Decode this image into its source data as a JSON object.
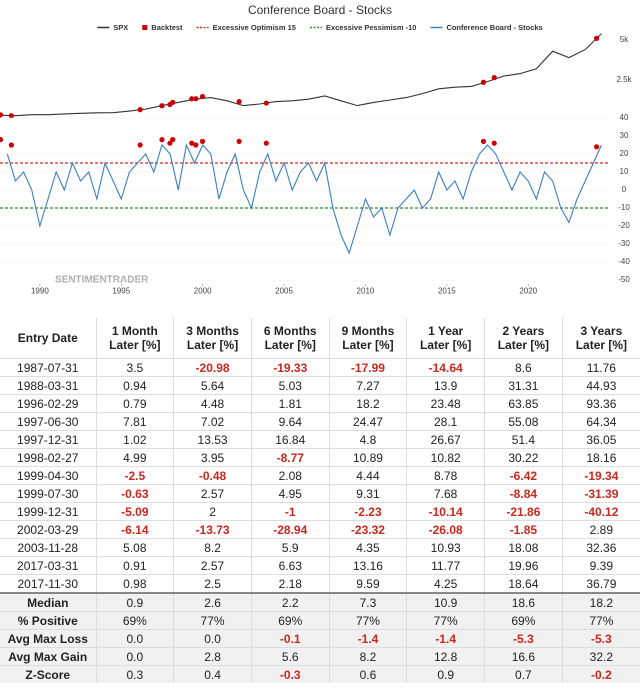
{
  "chart_data": [
    {
      "type": "line",
      "title": "Conference Board - Stocks",
      "watermark": "SENTIMENTRADER",
      "xlim": [
        1987.55,
        2024.9
      ],
      "ylim": [
        0,
        5600
      ],
      "yticks": [
        {
          "value": 2500,
          "label": "2.5k"
        },
        {
          "value": 5000,
          "label": "5k"
        }
      ],
      "series": [
        {
          "name": "SPX",
          "color": "#333333",
          "x": [
            1987.5,
            1988.5,
            1989.5,
            1990.5,
            1991.5,
            1992.5,
            1993.5,
            1994.5,
            1995.5,
            1996.5,
            1997.5,
            1998.5,
            1999.5,
            2000.5,
            2001.5,
            2002.5,
            2003.5,
            2004.5,
            2005.5,
            2006.5,
            2007.5,
            2008.5,
            2009.5,
            2010.5,
            2011.5,
            2012.5,
            2013.5,
            2014.5,
            2015.5,
            2016.5,
            2017.5,
            2018.5,
            2019.5,
            2020.5,
            2021.5,
            2022.5,
            2023.5,
            2024.5
          ],
          "values": [
            300,
            270,
            330,
            330,
            380,
            420,
            450,
            460,
            560,
            680,
            900,
            1100,
            1300,
            1400,
            1200,
            900,
            1000,
            1150,
            1200,
            1300,
            1500,
            1200,
            900,
            1100,
            1250,
            1400,
            1650,
            1950,
            2050,
            2100,
            2400,
            2750,
            2900,
            3200,
            4300,
            3900,
            4400,
            5400
          ]
        },
        {
          "name": "Backtest",
          "color": "#cc0000",
          "type": "scatter",
          "x": [
            1987.58,
            1988.25,
            1996.16,
            1997.5,
            1997.99,
            1998.16,
            1999.33,
            1999.58,
            1999.99,
            2002.24,
            2003.91,
            2017.25,
            2017.91,
            2024.2
          ],
          "values": [
            320,
            265,
            650,
            890,
            970,
            1100,
            1330,
            1330,
            1470,
            1150,
            1060,
            2360,
            2650,
            5100
          ]
        }
      ]
    },
    {
      "type": "line",
      "xlim": [
        1987.55,
        2024.9
      ],
      "ylim": [
        -52,
        42
      ],
      "grid": true,
      "yticks": [
        40,
        30,
        20,
        10,
        0,
        -10,
        -20,
        -30,
        -40,
        -50
      ],
      "xticks": [
        1990,
        1995,
        2000,
        2005,
        2010,
        2015,
        2020
      ],
      "series": [
        {
          "name": "Excessive Optimism 15",
          "color": "#dd2222",
          "dashed": true,
          "x": [
            1987.55,
            2024.9
          ],
          "values": [
            15,
            15
          ]
        },
        {
          "name": "Excessive Pessimism -10",
          "color": "#229922",
          "dashed": true,
          "x": [
            1987.55,
            2024.9
          ],
          "values": [
            -10,
            -10
          ]
        },
        {
          "name": "Conference Board - Stocks",
          "color": "#3a7fc4",
          "x": [
            1988,
            1988.5,
            1989,
            1989.5,
            1990,
            1990.5,
            1991,
            1991.5,
            1992,
            1992.5,
            1993,
            1993.5,
            1994,
            1994.5,
            1995,
            1995.5,
            1996,
            1996.5,
            1997,
            1997.5,
            1998,
            1998.5,
            1999,
            1999.5,
            2000,
            2000.5,
            2001,
            2001.5,
            2002,
            2002.5,
            2003,
            2003.5,
            2004,
            2004.5,
            2005,
            2005.5,
            2006,
            2006.5,
            2007,
            2007.5,
            2008,
            2008.5,
            2009,
            2009.5,
            2010,
            2010.5,
            2011,
            2011.5,
            2012,
            2012.5,
            2013,
            2013.5,
            2014,
            2014.5,
            2015,
            2015.5,
            2016,
            2016.5,
            2017,
            2017.5,
            2018,
            2018.5,
            2019,
            2019.5,
            2020,
            2020.5,
            2021,
            2021.5,
            2022,
            2022.5,
            2023,
            2023.5,
            2024,
            2024.5
          ],
          "values": [
            20,
            5,
            10,
            0,
            -20,
            -5,
            10,
            0,
            15,
            5,
            10,
            -5,
            15,
            5,
            -5,
            10,
            15,
            20,
            10,
            25,
            20,
            0,
            25,
            15,
            25,
            20,
            -5,
            10,
            20,
            0,
            -10,
            10,
            20,
            5,
            15,
            0,
            10,
            15,
            5,
            15,
            -10,
            -25,
            -35,
            -20,
            -5,
            -15,
            -10,
            -25,
            -10,
            -5,
            0,
            -10,
            -5,
            10,
            0,
            5,
            -5,
            10,
            20,
            25,
            20,
            10,
            0,
            10,
            5,
            -5,
            10,
            5,
            -10,
            -18,
            -5,
            5,
            15,
            25
          ]
        }
      ],
      "markers": {
        "color": "#cc0000",
        "x": [
          1987.58,
          1988.25,
          1996.16,
          1997.5,
          1997.99,
          1998.16,
          1999.33,
          1999.58,
          1999.99,
          2002.24,
          2003.91,
          2017.25,
          2017.91,
          2024.2
        ],
        "values": [
          28,
          25,
          25,
          28,
          26,
          28,
          26,
          25,
          27,
          27,
          26,
          27,
          26,
          24
        ]
      }
    }
  ],
  "table": {
    "header": [
      "Entry Date",
      "1 Month\nLater [%]",
      "3 Months\nLater [%]",
      "6 Months\nLater [%]",
      "9 Months\nLater [%]",
      "1 Year\nLater [%]",
      "2 Years\nLater [%]",
      "3 Years\nLater [%]"
    ],
    "rows": [
      [
        "1987-07-31",
        "3.5",
        "-20.98",
        "-19.33",
        "-17.99",
        "-14.64",
        "8.6",
        "11.76"
      ],
      [
        "1988-03-31",
        "0.94",
        "5.64",
        "5.03",
        "7.27",
        "13.9",
        "31.31",
        "44.93"
      ],
      [
        "1996-02-29",
        "0.79",
        "4.48",
        "1.81",
        "18.2",
        "23.48",
        "63.85",
        "93.36"
      ],
      [
        "1997-06-30",
        "7.81",
        "7.02",
        "9.64",
        "24.47",
        "28.1",
        "55.08",
        "64.34"
      ],
      [
        "1997-12-31",
        "1.02",
        "13.53",
        "16.84",
        "4.8",
        "26.67",
        "51.4",
        "36.05"
      ],
      [
        "1998-02-27",
        "4.99",
        "3.95",
        "-8.77",
        "10.89",
        "10.82",
        "30.22",
        "18.16"
      ],
      [
        "1999-04-30",
        "-2.5",
        "-0.48",
        "2.08",
        "4.44",
        "8.78",
        "-6.42",
        "-19.34"
      ],
      [
        "1999-07-30",
        "-0.63",
        "2.57",
        "4.95",
        "9.31",
        "7.68",
        "-8.84",
        "-31.39"
      ],
      [
        "1999-12-31",
        "-5.09",
        "2",
        "-1",
        "-2.23",
        "-10.14",
        "-21.86",
        "-40.12"
      ],
      [
        "2002-03-29",
        "-6.14",
        "-13.73",
        "-28.94",
        "-23.32",
        "-26.08",
        "-1.85",
        "2.89"
      ],
      [
        "2003-11-28",
        "5.08",
        "8.2",
        "5.9",
        "4.35",
        "10.93",
        "18.08",
        "32.36"
      ],
      [
        "2017-03-31",
        "0.91",
        "2.57",
        "6.63",
        "13.16",
        "11.77",
        "19.96",
        "9.39"
      ],
      [
        "2017-11-30",
        "0.98",
        "2.5",
        "2.18",
        "9.59",
        "4.25",
        "18.64",
        "36.79"
      ]
    ],
    "summary": [
      [
        "Median",
        "0.9",
        "2.6",
        "2.2",
        "7.3",
        "10.9",
        "18.6",
        "18.2"
      ],
      [
        "% Positive",
        "69%",
        "77%",
        "69%",
        "77%",
        "77%",
        "69%",
        "77%"
      ],
      [
        "Avg Max Loss",
        "0.0",
        "0.0",
        "-0.1",
        "-1.4",
        "-1.4",
        "-5.3",
        "-5.3"
      ],
      [
        "Avg Max Gain",
        "0.0",
        "2.8",
        "5.6",
        "8.2",
        "12.8",
        "16.6",
        "32.2"
      ],
      [
        "Z-Score",
        "0.3",
        "0.4",
        "-0.3",
        "0.6",
        "0.9",
        "0.7",
        "-0.2"
      ]
    ]
  }
}
